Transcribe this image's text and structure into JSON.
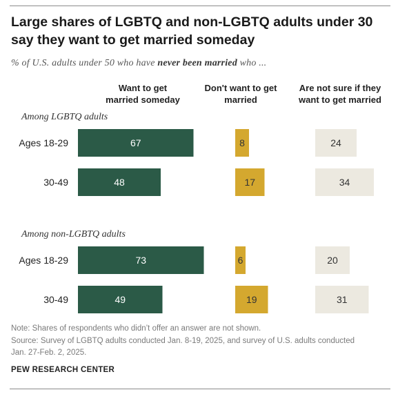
{
  "title": "Large shares of LGBTQ and non-LGBTQ adults under 30 say they want to get married someday",
  "subtitle": {
    "pre": "% of U.S. adults under 50 who have ",
    "bold": "never been married",
    "post": " who ..."
  },
  "notes": {
    "note": "Note: Shares of respondents who didn’t offer an answer are not shown.",
    "source": "Source: Survey of LGBTQ adults conducted Jan. 8-19, 2025, and survey of U.S. adults conducted Jan. 27-Feb. 2, 2025."
  },
  "logo": "PEW RESEARCH CENTER",
  "colors": {
    "want": "#2b5a47",
    "dont": "#d4a82f",
    "notsure": "#ece9e0",
    "want_text": "#ffffff",
    "other_text": "#333333"
  },
  "chart_data": {
    "type": "bar",
    "columns": [
      {
        "key": "want",
        "label": "Want to get married someday"
      },
      {
        "key": "dont",
        "label": "Don't want to get married"
      },
      {
        "key": "notsure",
        "label": "Are not sure if they want to get married"
      }
    ],
    "groups": [
      {
        "label": "Among LGBTQ adults",
        "rows": [
          {
            "label": "Ages 18-29",
            "values": [
              67,
              8,
              24
            ]
          },
          {
            "label": "30-49",
            "values": [
              48,
              17,
              34
            ]
          }
        ]
      },
      {
        "label": "Among non-LGBTQ adults",
        "rows": [
          {
            "label": "Ages 18-29",
            "values": [
              73,
              6,
              20
            ]
          },
          {
            "label": "30-49",
            "values": [
              49,
              19,
              31
            ]
          }
        ]
      }
    ]
  }
}
